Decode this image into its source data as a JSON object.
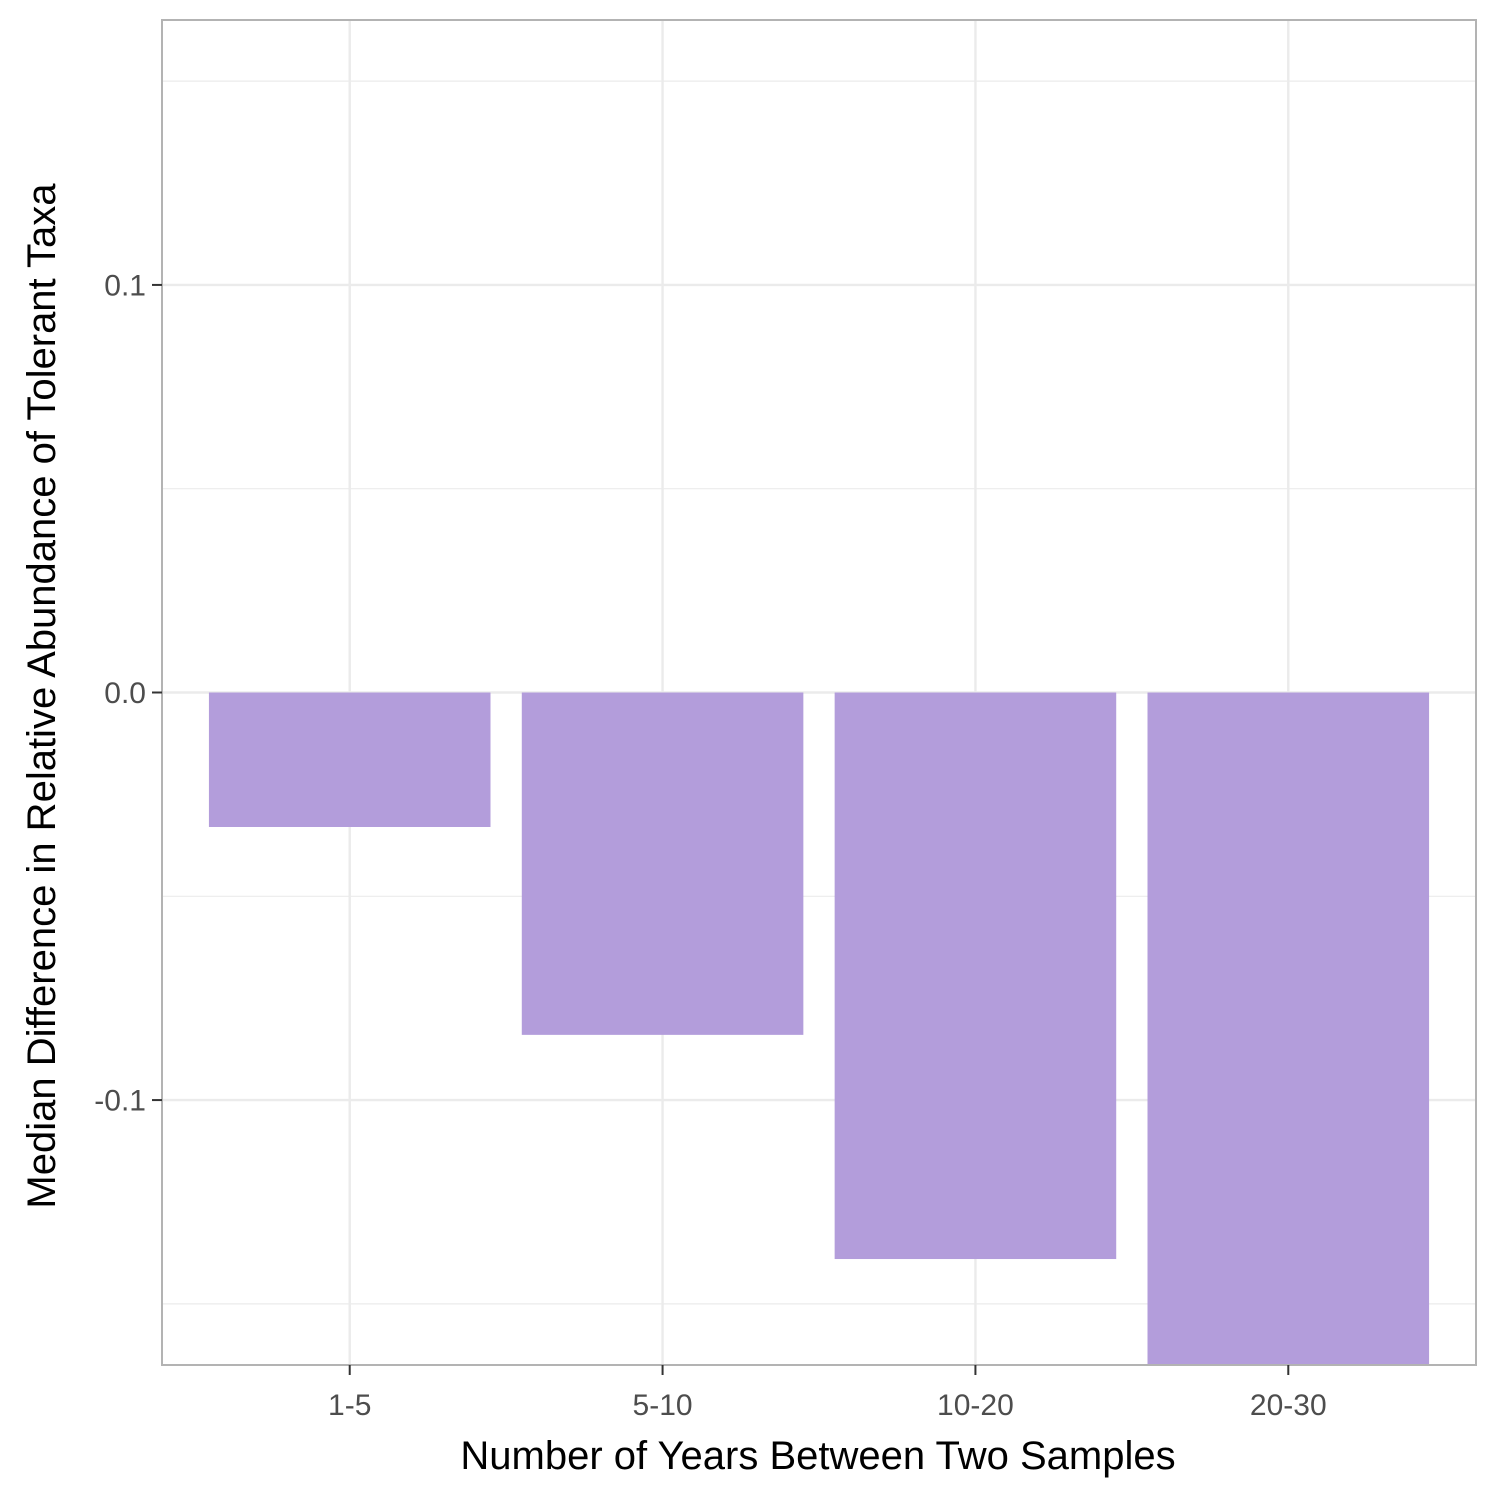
{
  "chart_data": {
    "type": "bar",
    "categories": [
      "1-5",
      "5-10",
      "10-20",
      "20-30"
    ],
    "values": [
      -0.033,
      -0.084,
      -0.139,
      -0.168
    ],
    "xlabel": "Number of Years Between Two Samples",
    "ylabel": "Median Difference in Relative Abundance of Tolerant Taxa",
    "ylim": [
      -0.165,
      0.165
    ],
    "yticks": [
      -0.1,
      0.0,
      0.1
    ],
    "ytick_labels": [
      "-0.1",
      "0.0",
      "0.1"
    ],
    "bar_color": "#b39ddb",
    "grid": true,
    "grid_color": "#ebebeb",
    "panel_border_color": "#b3b3b3",
    "legend": "none"
  }
}
